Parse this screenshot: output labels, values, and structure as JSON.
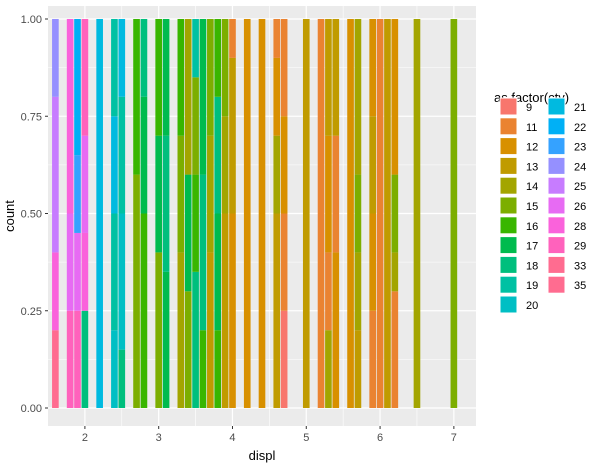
{
  "chart_data": {
    "type": "bar",
    "position": "fill",
    "xlabel": "displ",
    "ylabel": "count",
    "xlim": [
      1.5,
      7.3
    ],
    "ylim": [
      0,
      1
    ],
    "x_ticks": [
      2,
      3,
      4,
      5,
      6,
      7
    ],
    "y_ticks": [
      0,
      0.25,
      0.5,
      0.75,
      1
    ],
    "y_tick_labels": [
      "0.00",
      "0.25",
      "0.50",
      "0.75",
      "1.00"
    ],
    "bar_width": 0.09,
    "legend": {
      "title": "as.factor(cty)",
      "placement": "right",
      "entries": [
        "9",
        "11",
        "12",
        "13",
        "14",
        "15",
        "16",
        "17",
        "18",
        "19",
        "20",
        "21",
        "22",
        "23",
        "24",
        "25",
        "26",
        "28",
        "29",
        "33",
        "35"
      ]
    },
    "colors": {
      "9": "#F8766D",
      "11": "#EA8331",
      "12": "#D89000",
      "13": "#C09B00",
      "14": "#A3A500",
      "15": "#7CAE00",
      "16": "#39B600",
      "17": "#00BB4E",
      "18": "#00BF7D",
      "19": "#00C1A3",
      "20": "#00BFC4",
      "21": "#00BAE0",
      "22": "#00B0F6",
      "23": "#35A2FF",
      "24": "#9590FF",
      "25": "#C77CFF",
      "26": "#E76BF3",
      "28": "#FA62DB",
      "29": "#FF62BC",
      "33": "#FF6C90",
      "35": "#FF6C90"
    },
    "bars": [
      {
        "x": 1.6,
        "segments": [
          [
            "35",
            0.2
          ],
          [
            "28",
            0.2
          ],
          [
            "25",
            0.4
          ],
          [
            "24",
            0.2
          ]
        ]
      },
      {
        "x": 1.8,
        "segments": [
          [
            "29",
            0.25
          ],
          [
            "26",
            0.25
          ],
          [
            "28",
            0.5
          ]
        ]
      },
      {
        "x": 1.9,
        "segments": [
          [
            "29",
            0.25
          ],
          [
            "26",
            0.2
          ],
          [
            "23",
            0.2
          ],
          [
            "22",
            0.35
          ]
        ]
      },
      {
        "x": 2.0,
        "segments": [
          [
            "18",
            0.25
          ],
          [
            "28",
            0.2
          ],
          [
            "26",
            0.25
          ],
          [
            "29",
            0.3
          ]
        ]
      },
      {
        "x": 2.2,
        "segments": [
          [
            "21",
            1.0
          ]
        ]
      },
      {
        "x": 2.4,
        "segments": [
          [
            "20",
            0.2
          ],
          [
            "19",
            0.3
          ],
          [
            "21",
            0.25
          ],
          [
            "19",
            0.25
          ]
        ]
      },
      {
        "x": 2.5,
        "segments": [
          [
            "18",
            0.15
          ],
          [
            "20",
            0.35
          ],
          [
            "19",
            0.3
          ],
          [
            "21",
            0.2
          ]
        ]
      },
      {
        "x": 2.7,
        "segments": [
          [
            "15",
            0.6
          ],
          [
            "16",
            0.4
          ]
        ]
      },
      {
        "x": 2.8,
        "segments": [
          [
            "16",
            0.5
          ],
          [
            "17",
            0.3
          ],
          [
            "18",
            0.2
          ]
        ]
      },
      {
        "x": 3.0,
        "segments": [
          [
            "15",
            0.4
          ],
          [
            "17",
            0.3
          ],
          [
            "16",
            0.3
          ]
        ]
      },
      {
        "x": 3.1,
        "segments": [
          [
            "17",
            0.35
          ],
          [
            "18",
            0.35
          ],
          [
            "17",
            0.3
          ]
        ]
      },
      {
        "x": 3.3,
        "segments": [
          [
            "14",
            0.4
          ],
          [
            "15",
            0.3
          ],
          [
            "16",
            0.3
          ]
        ]
      },
      {
        "x": 3.4,
        "segments": [
          [
            "15",
            0.3
          ],
          [
            "17",
            0.3
          ],
          [
            "14",
            0.4
          ]
        ]
      },
      {
        "x": 3.5,
        "segments": [
          [
            "18",
            0.35
          ],
          [
            "16",
            0.25
          ],
          [
            "15",
            0.25
          ],
          [
            "19",
            0.15
          ]
        ]
      },
      {
        "x": 3.6,
        "segments": [
          [
            "16",
            0.2
          ],
          [
            "18",
            0.4
          ],
          [
            "17",
            0.4
          ]
        ]
      },
      {
        "x": 3.7,
        "segments": [
          [
            "13",
            0.4
          ],
          [
            "14",
            0.3
          ],
          [
            "15",
            0.3
          ]
        ]
      },
      {
        "x": 3.8,
        "segments": [
          [
            "16",
            0.2
          ],
          [
            "17",
            0.3
          ],
          [
            "18",
            0.3
          ],
          [
            "16",
            0.2
          ]
        ]
      },
      {
        "x": 3.9,
        "segments": [
          [
            "13",
            0.5
          ],
          [
            "14",
            0.25
          ],
          [
            "15",
            0.25
          ]
        ]
      },
      {
        "x": 4.0,
        "segments": [
          [
            "12",
            0.5
          ],
          [
            "13",
            0.4
          ],
          [
            "11",
            0.1
          ]
        ]
      },
      {
        "x": 4.2,
        "segments": [
          [
            "12",
            1.0
          ]
        ]
      },
      {
        "x": 4.4,
        "segments": [
          [
            "12",
            1.0
          ]
        ]
      },
      {
        "x": 4.6,
        "segments": [
          [
            "13",
            0.5
          ],
          [
            "14",
            0.2
          ],
          [
            "12",
            0.2
          ],
          [
            "11",
            0.1
          ]
        ]
      },
      {
        "x": 4.7,
        "segments": [
          [
            "9",
            0.25
          ],
          [
            "11",
            0.25
          ],
          [
            "12",
            0.25
          ],
          [
            "11",
            0.25
          ]
        ]
      },
      {
        "x": 5.0,
        "segments": [
          [
            "13",
            1.0
          ]
        ]
      },
      {
        "x": 5.2,
        "segments": [
          [
            "11",
            1.0
          ]
        ]
      },
      {
        "x": 5.3,
        "segments": [
          [
            "14",
            0.2
          ],
          [
            "11",
            0.2
          ],
          [
            "12",
            0.3
          ],
          [
            "13",
            0.3
          ]
        ]
      },
      {
        "x": 5.4,
        "segments": [
          [
            "12",
            0.4
          ],
          [
            "11",
            0.3
          ],
          [
            "13",
            0.3
          ]
        ]
      },
      {
        "x": 5.6,
        "segments": [
          [
            "12",
            1.0
          ]
        ]
      },
      {
        "x": 5.7,
        "segments": [
          [
            "13",
            0.2
          ],
          [
            "14",
            0.2
          ],
          [
            "15",
            0.2
          ],
          [
            "14",
            0.4
          ]
        ]
      },
      {
        "x": 5.9,
        "segments": [
          [
            "11",
            0.25
          ],
          [
            "12",
            0.25
          ],
          [
            "13",
            0.25
          ],
          [
            "12",
            0.25
          ]
        ]
      },
      {
        "x": 6.0,
        "segments": [
          [
            "11",
            1.0
          ]
        ]
      },
      {
        "x": 6.1,
        "segments": [
          [
            "13",
            1.0
          ]
        ]
      },
      {
        "x": 6.2,
        "segments": [
          [
            "11",
            0.3
          ],
          [
            "14",
            0.1
          ],
          [
            "15",
            0.2
          ],
          [
            "12",
            0.4
          ]
        ]
      },
      {
        "x": 6.5,
        "segments": [
          [
            "14",
            1.0
          ]
        ]
      },
      {
        "x": 7.0,
        "segments": [
          [
            "15",
            1.0
          ]
        ]
      }
    ]
  }
}
